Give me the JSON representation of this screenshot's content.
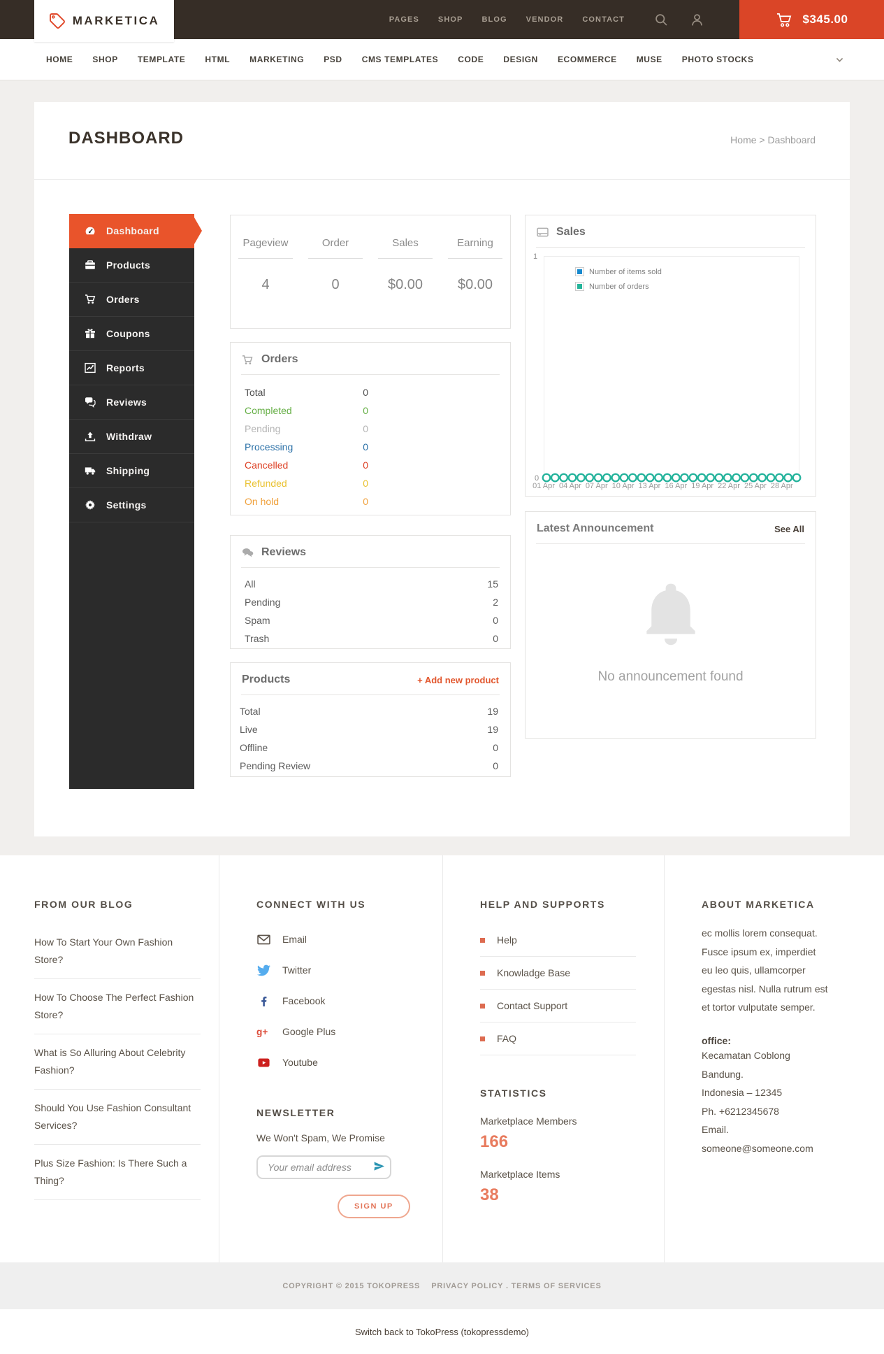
{
  "topbar": {
    "brand": "MARKETICA",
    "links": [
      "PAGES",
      "SHOP",
      "BLOG",
      "VENDOR",
      "CONTACT"
    ],
    "cart_total": "$345.00",
    "accent_color": "#da4527"
  },
  "mainnav": {
    "items": [
      "HOME",
      "SHOP",
      "TEMPLATE",
      "HTML",
      "MARKETING",
      "PSD",
      "CMS TEMPLATES",
      "CODE",
      "DESIGN",
      "ECOMMERCE",
      "MUSE",
      "PHOTO STOCKS"
    ]
  },
  "page": {
    "title": "DASHBOARD",
    "breadcrumb": {
      "home": "Home",
      "separator": ">",
      "current": "Dashboard"
    }
  },
  "sidebar": {
    "active_color": "#e9542b",
    "items": [
      {
        "label": "Dashboard",
        "icon": "dashboard-icon",
        "active": true
      },
      {
        "label": "Products",
        "icon": "briefcase-icon",
        "active": false
      },
      {
        "label": "Orders",
        "icon": "cart-icon",
        "active": false
      },
      {
        "label": "Coupons",
        "icon": "gift-icon",
        "active": false
      },
      {
        "label": "Reports",
        "icon": "chart-line-icon",
        "active": false
      },
      {
        "label": "Reviews",
        "icon": "comments-icon",
        "active": false
      },
      {
        "label": "Withdraw",
        "icon": "upload-icon",
        "active": false
      },
      {
        "label": "Shipping",
        "icon": "truck-icon",
        "active": false
      },
      {
        "label": "Settings",
        "icon": "gear-icon",
        "active": false
      }
    ]
  },
  "stats": {
    "columns": [
      {
        "label": "Pageview",
        "value": "4"
      },
      {
        "label": "Order",
        "value": "0"
      },
      {
        "label": "Sales",
        "value": "$0.00"
      },
      {
        "label": "Earning",
        "value": "$0.00"
      }
    ]
  },
  "orders_panel": {
    "title": "Orders",
    "rows": [
      {
        "label": "Total",
        "value": "0",
        "color": "#4f4f4f"
      },
      {
        "label": "Completed",
        "value": "0",
        "color": "#64ae44"
      },
      {
        "label": "Pending",
        "value": "0",
        "color": "#b5b5b5"
      },
      {
        "label": "Processing",
        "value": "0",
        "color": "#2d72a8"
      },
      {
        "label": "Cancelled",
        "value": "0",
        "color": "#dd4024"
      },
      {
        "label": "Refunded",
        "value": "0",
        "color": "#e9c12f"
      },
      {
        "label": "On hold",
        "value": "0",
        "color": "#f0a13c"
      }
    ]
  },
  "reviews_panel": {
    "title": "Reviews",
    "rows": [
      {
        "label": "All",
        "value": "15"
      },
      {
        "label": "Pending",
        "value": "2"
      },
      {
        "label": "Spam",
        "value": "0"
      },
      {
        "label": "Trash",
        "value": "0"
      }
    ]
  },
  "products_panel": {
    "title": "Products",
    "action": "+ Add new product",
    "rows": [
      {
        "label": "Total",
        "value": "19"
      },
      {
        "label": "Live",
        "value": "19"
      },
      {
        "label": "Offline",
        "value": "0"
      },
      {
        "label": "Pending Review",
        "value": "0"
      }
    ]
  },
  "sales_panel": {
    "title": "Sales"
  },
  "chart_data": {
    "type": "line",
    "title": "Sales",
    "x": [
      "01 Apr",
      "02 Apr",
      "03 Apr",
      "04 Apr",
      "05 Apr",
      "06 Apr",
      "07 Apr",
      "08 Apr",
      "09 Apr",
      "10 Apr",
      "11 Apr",
      "12 Apr",
      "13 Apr",
      "14 Apr",
      "15 Apr",
      "16 Apr",
      "17 Apr",
      "18 Apr",
      "19 Apr",
      "20 Apr",
      "21 Apr",
      "22 Apr",
      "23 Apr",
      "24 Apr",
      "25 Apr",
      "26 Apr",
      "27 Apr",
      "28 Apr",
      "29 Apr",
      "30 Apr"
    ],
    "series": [
      {
        "name": "Number of items sold",
        "color": "#1789ce",
        "values": [
          0,
          0,
          0,
          0,
          0,
          0,
          0,
          0,
          0,
          0,
          0,
          0,
          0,
          0,
          0,
          0,
          0,
          0,
          0,
          0,
          0,
          0,
          0,
          0,
          0,
          0,
          0,
          0,
          0,
          0
        ]
      },
      {
        "name": "Number of orders",
        "color": "#24b49a",
        "values": [
          0,
          0,
          0,
          0,
          0,
          0,
          0,
          0,
          0,
          0,
          0,
          0,
          0,
          0,
          0,
          0,
          0,
          0,
          0,
          0,
          0,
          0,
          0,
          0,
          0,
          0,
          0,
          0,
          0,
          0
        ]
      }
    ],
    "ylim": [
      0,
      1
    ],
    "ytick_labels": [
      "1",
      "0"
    ],
    "xtick_labels": [
      "01 Apr",
      "04 Apr",
      "07 Apr",
      "10 Apr",
      "13 Apr",
      "16 Apr",
      "19 Apr",
      "22 Apr",
      "25 Apr",
      "28 Apr"
    ],
    "legend_position": "top-left",
    "point_style": "hollow-circle",
    "grid": false
  },
  "announcement_panel": {
    "title": "Latest Announcement",
    "action": "See All",
    "empty_message": "No announcement found"
  },
  "footer": {
    "blog": {
      "heading": "FROM OUR BLOG",
      "links": [
        "How To Start Your Own Fashion Store?",
        "How To Choose The Perfect Fashion Store?",
        "What is So Alluring About Celebrity Fashion?",
        "Should You Use Fashion Consultant Services?",
        "Plus Size Fashion: Is There Such a Thing?"
      ]
    },
    "connect": {
      "heading": "CONNECT WITH US",
      "links": [
        {
          "label": "Email",
          "icon": "email-icon"
        },
        {
          "label": "Twitter",
          "icon": "twitter-icon"
        },
        {
          "label": "Facebook",
          "icon": "facebook-icon"
        },
        {
          "label": "Google Plus",
          "icon": "googleplus-icon"
        },
        {
          "label": "Youtube",
          "icon": "youtube-icon"
        }
      ]
    },
    "newsletter": {
      "heading": "NEWSLETTER",
      "tagline": "We Won't Spam, We Promise",
      "placeholder": "Your email address",
      "button": "SIGN UP"
    },
    "help": {
      "heading": "HELP AND SUPPORTS",
      "links": [
        "Help",
        "Knowladge Base",
        "Contact Support",
        "FAQ"
      ]
    },
    "statistics": {
      "heading": "STATISTICS",
      "items": [
        {
          "label": "Marketplace Members",
          "value": "166"
        },
        {
          "label": "Marketplace Items",
          "value": "38"
        }
      ]
    },
    "about": {
      "heading": "ABOUT MARKETICA",
      "text": "ec mollis lorem consequat. Fusce ipsum ex, imperdiet eu leo quis, ullamcorper egestas nisl. Nulla rutrum est et tortor vulputate semper.",
      "office_label": "office:",
      "address_lines": [
        "Kecamatan Coblong",
        "Bandung.",
        "Indonesia – 12345",
        "Ph. +6212345678",
        "Email. someone@someone.com"
      ]
    }
  },
  "copyright": {
    "text": "COPYRIGHT © 2015 TOKOPRESS",
    "links": "PRIVACY POLICY . TERMS OF SERVICES"
  },
  "admin_bar": {
    "label": "Switch back to TokoPress (tokopressdemo)"
  }
}
